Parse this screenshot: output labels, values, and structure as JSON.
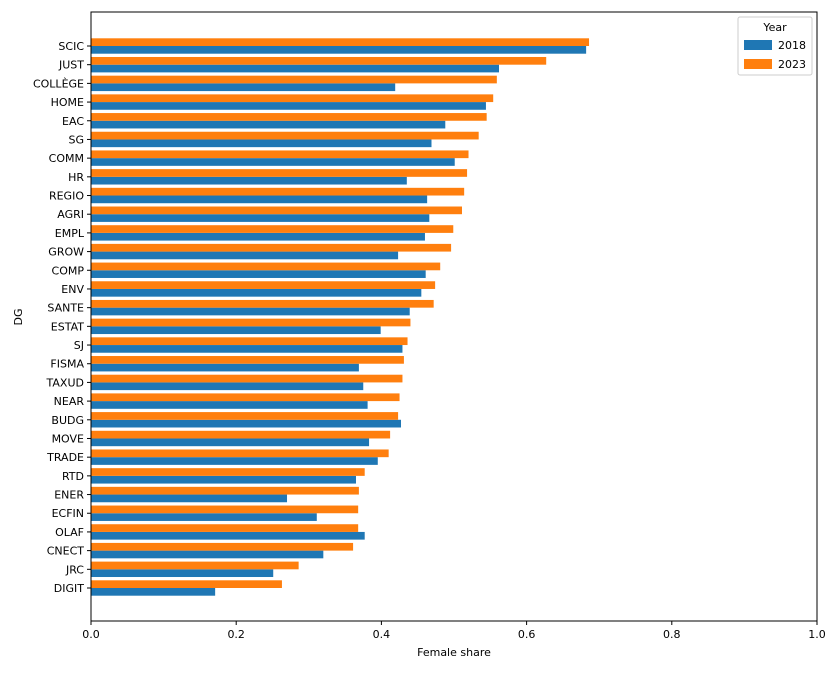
{
  "chart_data": {
    "type": "bar",
    "orientation": "horizontal",
    "xlabel": "Female share",
    "ylabel": "DG",
    "xlim": [
      0,
      1.0
    ],
    "xticks": [
      "0.0",
      "0.2",
      "0.4",
      "0.6",
      "0.8",
      "1.0"
    ],
    "grid": false,
    "legend": {
      "title": "Year",
      "placement": "top-right"
    },
    "categories": [
      "SCIC",
      "JUST",
      "COLLÈGE",
      "HOME",
      "EAC",
      "SG",
      "COMM",
      "HR",
      "REGIO",
      "AGRI",
      "EMPL",
      "GROW",
      "COMP",
      "ENV",
      "SANTE",
      "ESTAT",
      "SJ",
      "FISMA",
      "TAXUD",
      "NEAR",
      "BUDG",
      "MOVE",
      "TRADE",
      "RTD",
      "ENER",
      "ECFIN",
      "OLAF",
      "CNECT",
      "JRC",
      "DIGIT"
    ],
    "series": [
      {
        "name": "2018",
        "color": "#1f77b4",
        "values": [
          0.682,
          0.562,
          0.419,
          0.544,
          0.488,
          0.469,
          0.501,
          0.435,
          0.463,
          0.466,
          0.46,
          0.423,
          0.461,
          0.455,
          0.439,
          0.399,
          0.429,
          0.369,
          0.375,
          0.381,
          0.427,
          0.383,
          0.395,
          0.365,
          0.27,
          0.311,
          0.377,
          0.32,
          0.251,
          0.171
        ]
      },
      {
        "name": "2023",
        "color": "#ff7f0e",
        "values": [
          0.686,
          0.627,
          0.559,
          0.554,
          0.545,
          0.534,
          0.52,
          0.518,
          0.514,
          0.511,
          0.499,
          0.496,
          0.481,
          0.474,
          0.472,
          0.44,
          0.436,
          0.431,
          0.429,
          0.425,
          0.423,
          0.412,
          0.41,
          0.377,
          0.369,
          0.368,
          0.368,
          0.361,
          0.286,
          0.263
        ]
      }
    ]
  }
}
